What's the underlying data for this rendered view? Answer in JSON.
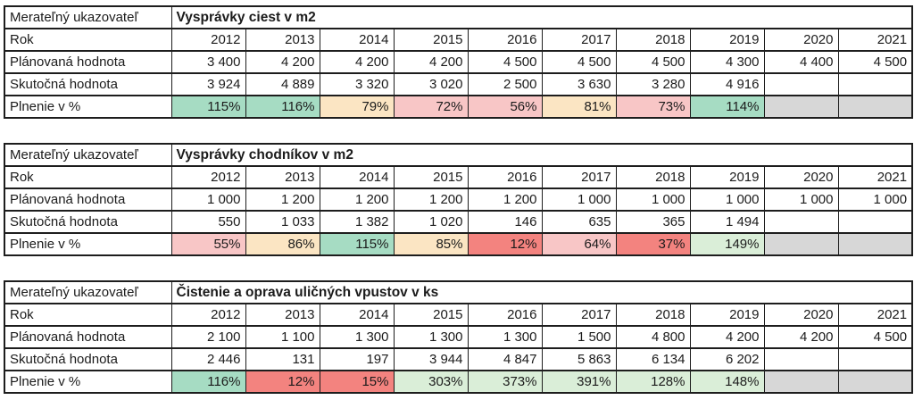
{
  "page": {
    "background": "#ffffff",
    "border_color": "#1d1d1d",
    "text_color": "#1b1b1b"
  },
  "palette": {
    "teal_green": "#a6dcc3",
    "pale_green": "#daeed8",
    "peach": "#fbe5c3",
    "pink": "#f8c6c6",
    "salmon_red": "#f3837f",
    "gray_empty": "#d7d7d7",
    "white": "#ffffff"
  },
  "labels": {
    "indicator": "Merateľný ukazovateľ",
    "year_row": "Rok",
    "planned_row": "Plánovaná hodnota",
    "actual_row": "Skutočná hodnota",
    "fulfillment_row": "Plnenie v %"
  },
  "years": [
    "2012",
    "2013",
    "2014",
    "2015",
    "2016",
    "2017",
    "2018",
    "2019",
    "2020",
    "2021"
  ],
  "tables": [
    {
      "title": "Vysprávky ciest v m2",
      "planned": [
        "3 400",
        "4 200",
        "4 200",
        "4 200",
        "4 500",
        "4 500",
        "4 500",
        "4 300",
        "4 400",
        "4 500"
      ],
      "actual": [
        "3 924",
        "4 889",
        "3 320",
        "3 020",
        "2 500",
        "3 630",
        "3 280",
        "4 916",
        "",
        ""
      ],
      "fulfillment": [
        {
          "value": "115%",
          "fill": "#a6dcc3"
        },
        {
          "value": "116%",
          "fill": "#a6dcc3"
        },
        {
          "value": "79%",
          "fill": "#fbe5c3"
        },
        {
          "value": "72%",
          "fill": "#f8c6c6"
        },
        {
          "value": "56%",
          "fill": "#f8c6c6"
        },
        {
          "value": "81%",
          "fill": "#fbe5c3"
        },
        {
          "value": "73%",
          "fill": "#f8c6c6"
        },
        {
          "value": "114%",
          "fill": "#a6dcc3"
        },
        {
          "value": "",
          "fill": "#d7d7d7"
        },
        {
          "value": "",
          "fill": "#d7d7d7"
        }
      ]
    },
    {
      "title": "Vysprávky chodníkov v m2",
      "planned": [
        "1 000",
        "1 200",
        "1 200",
        "1 200",
        "1 200",
        "1 000",
        "1 000",
        "1 000",
        "1 000",
        "1 000"
      ],
      "actual": [
        "550",
        "1 033",
        "1 382",
        "1 020",
        "146",
        "635",
        "365",
        "1 494",
        "",
        ""
      ],
      "fulfillment": [
        {
          "value": "55%",
          "fill": "#f8c6c6"
        },
        {
          "value": "86%",
          "fill": "#fbe5c3"
        },
        {
          "value": "115%",
          "fill": "#a6dcc3"
        },
        {
          "value": "85%",
          "fill": "#fbe5c3"
        },
        {
          "value": "12%",
          "fill": "#f3837f"
        },
        {
          "value": "64%",
          "fill": "#f8c6c6"
        },
        {
          "value": "37%",
          "fill": "#f3837f"
        },
        {
          "value": "149%",
          "fill": "#daeed8"
        },
        {
          "value": "",
          "fill": "#d7d7d7"
        },
        {
          "value": "",
          "fill": "#d7d7d7"
        }
      ]
    },
    {
      "title": "Čistenie a oprava uličných vpustov v ks",
      "planned": [
        "2 100",
        "1 100",
        "1 300",
        "1 300",
        "1 300",
        "1 500",
        "4 800",
        "4 200",
        "4 200",
        "4 500"
      ],
      "actual": [
        "2 446",
        "131",
        "197",
        "3 944",
        "4 847",
        "5 863",
        "6 134",
        "6 202",
        "",
        ""
      ],
      "fulfillment": [
        {
          "value": "116%",
          "fill": "#a6dcc3"
        },
        {
          "value": "12%",
          "fill": "#f3837f"
        },
        {
          "value": "15%",
          "fill": "#f3837f"
        },
        {
          "value": "303%",
          "fill": "#daeed8"
        },
        {
          "value": "373%",
          "fill": "#daeed8"
        },
        {
          "value": "391%",
          "fill": "#daeed8"
        },
        {
          "value": "128%",
          "fill": "#daeed8"
        },
        {
          "value": "148%",
          "fill": "#daeed8"
        },
        {
          "value": "",
          "fill": "#d7d7d7"
        },
        {
          "value": "",
          "fill": "#d7d7d7"
        }
      ]
    }
  ]
}
